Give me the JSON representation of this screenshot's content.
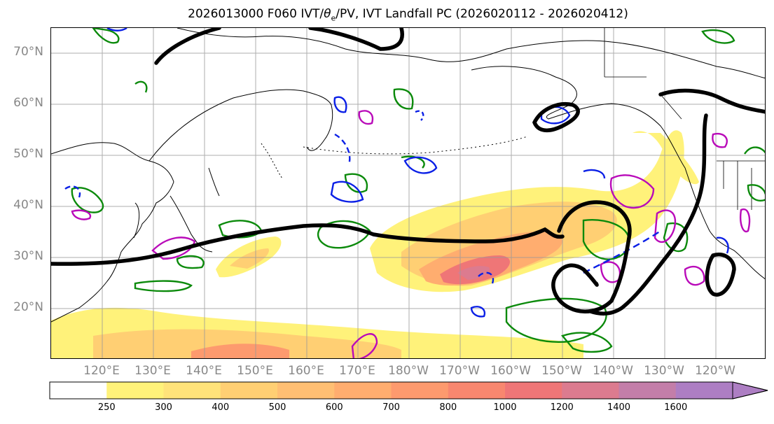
{
  "title": "2026013000 F060 IVT/θe/PV, IVT Landfall PC (2026020112 - 2026020412)",
  "title_parts": {
    "prefix": "2026013000 F060 IVT/",
    "theta": "θ",
    "theta_sub": "e",
    "suffix": "/PV, IVT Landfall PC (2026020112 - 2026020412)"
  },
  "lat_labels": [
    "70°N",
    "60°N",
    "50°N",
    "40°N",
    "30°N",
    "20°N"
  ],
  "lon_labels": [
    "120°E",
    "130°E",
    "140°E",
    "150°E",
    "160°E",
    "170°E",
    "180°W",
    "170°W",
    "160°W",
    "150°W",
    "140°W",
    "130°W",
    "120°W"
  ],
  "colorbar": {
    "ticks": [
      "250",
      "300",
      "400",
      "500",
      "600",
      "700",
      "800",
      "1000",
      "1200",
      "1400",
      "1600"
    ],
    "colors": [
      "#ffffff",
      "#fff27a",
      "#ffe37a",
      "#ffcf73",
      "#ffbf73",
      "#ffad6f",
      "#fd9a6e",
      "#f8876f",
      "#ef7677",
      "#dc7b8f",
      "#c37ea9",
      "#ad7ec3"
    ],
    "extend": "max"
  },
  "contour_colors": {
    "landfall_pc": "#000000",
    "theta_e": "#0b8a0b",
    "pv_positive": "#b90ab9",
    "pv_negative": "#0a1fe6",
    "coastline": "#000000",
    "grid": "#999999"
  }
}
